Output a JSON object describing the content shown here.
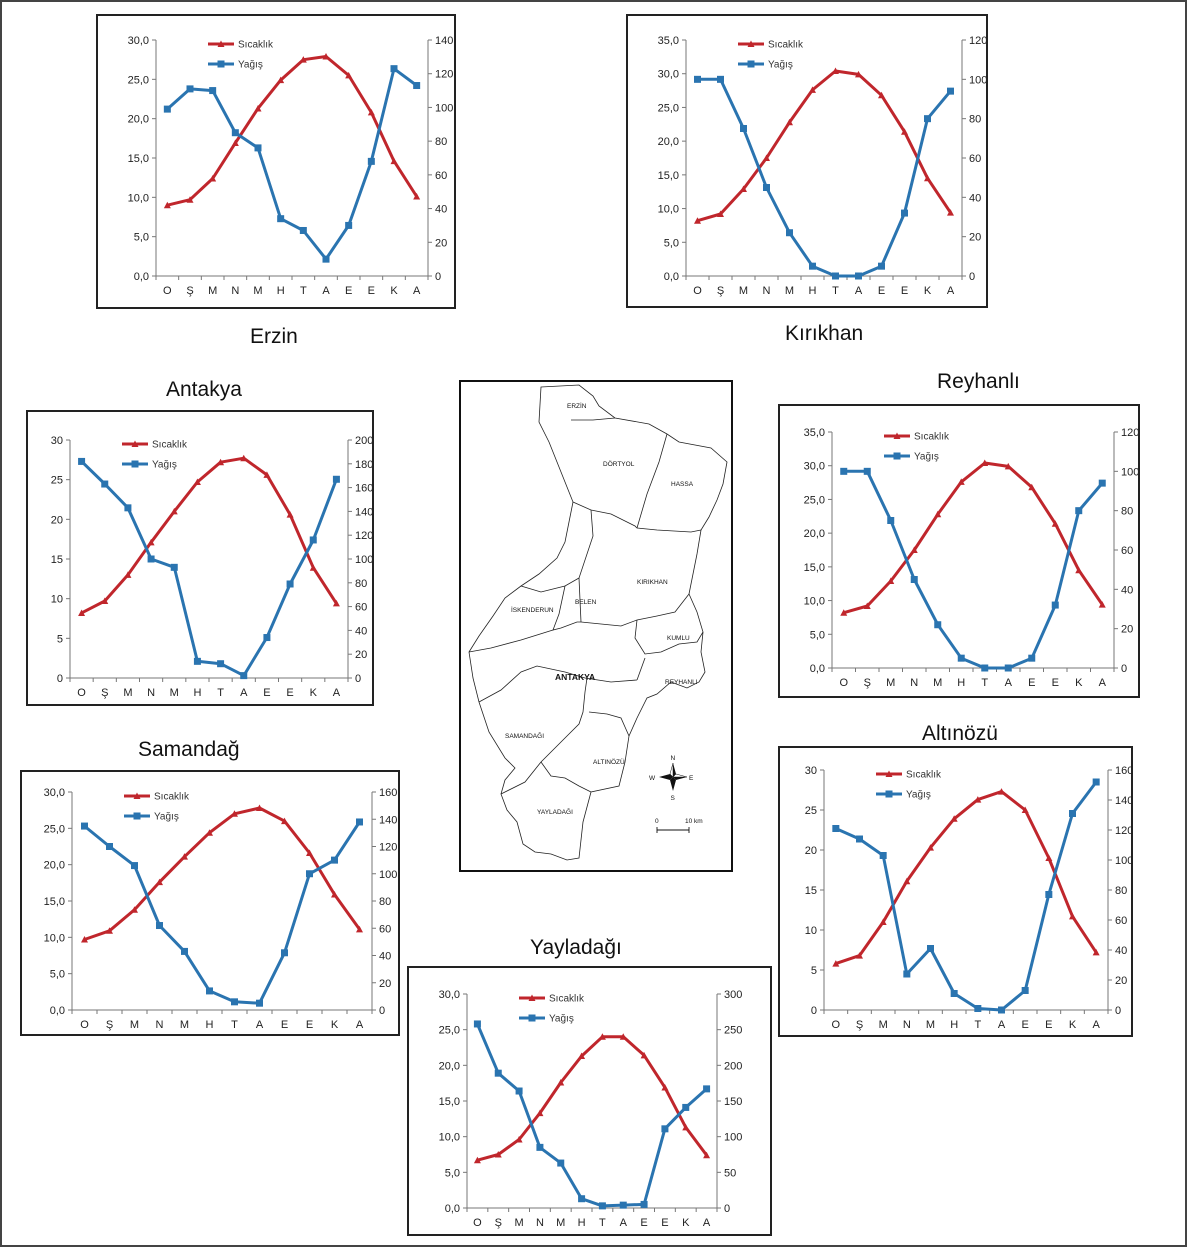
{
  "legend": {
    "temperature": "Sıcaklık",
    "precipitation": "Yağış"
  },
  "colors": {
    "temperature": "#c0262c",
    "precipitation": "#2a74b0"
  },
  "chart_data": [
    {
      "id": "erzin",
      "title": "Erzin",
      "type": "line",
      "categories": [
        "O",
        "Ş",
        "M",
        "N",
        "M",
        "H",
        "T",
        "A",
        "E",
        "E",
        "K",
        "A"
      ],
      "y_left": {
        "ticks": [
          "0,0",
          "5,0",
          "10,0",
          "15,0",
          "20,0",
          "25,0",
          "30,0"
        ],
        "range": [
          0,
          30
        ]
      },
      "y_right": {
        "ticks": [
          "0",
          "20",
          "40",
          "60",
          "80",
          "100",
          "120",
          "140"
        ],
        "range": [
          0,
          140
        ]
      },
      "series": [
        {
          "name": "Sıcaklık",
          "axis": "left",
          "values": [
            9.0,
            9.7,
            12.4,
            16.9,
            21.3,
            24.9,
            27.5,
            27.9,
            25.5,
            20.8,
            14.6,
            10.1
          ]
        },
        {
          "name": "Yağış",
          "axis": "right",
          "values": [
            99,
            111,
            110,
            85,
            76,
            34,
            27,
            10,
            30,
            68,
            123,
            113
          ]
        }
      ]
    },
    {
      "id": "kirikhan",
      "title": "Kırıkhan",
      "type": "line",
      "categories": [
        "O",
        "Ş",
        "M",
        "N",
        "M",
        "H",
        "T",
        "A",
        "E",
        "E",
        "K",
        "A"
      ],
      "y_left": {
        "ticks": [
          "0,0",
          "5,0",
          "10,0",
          "15,0",
          "20,0",
          "25,0",
          "30,0",
          "35,0"
        ],
        "range": [
          0,
          35
        ]
      },
      "y_right": {
        "ticks": [
          "0",
          "20",
          "40",
          "60",
          "80",
          "100",
          "120"
        ],
        "range": [
          0,
          120
        ]
      },
      "series": [
        {
          "name": "Sıcaklık",
          "axis": "left",
          "values": [
            8.2,
            9.2,
            12.9,
            17.5,
            22.8,
            27.6,
            30.4,
            29.9,
            26.8,
            21.4,
            14.5,
            9.4
          ]
        },
        {
          "name": "Yağış",
          "axis": "right",
          "values": [
            100,
            100,
            75,
            45,
            22,
            5,
            0,
            0,
            5,
            32,
            80,
            94
          ]
        }
      ]
    },
    {
      "id": "antakya",
      "title": "Antakya",
      "type": "line",
      "categories": [
        "O",
        "Ş",
        "M",
        "N",
        "M",
        "H",
        "T",
        "A",
        "E",
        "E",
        "K",
        "A"
      ],
      "y_left": {
        "ticks": [
          "0",
          "5",
          "10",
          "15",
          "20",
          "25",
          "30"
        ],
        "range": [
          0,
          30
        ]
      },
      "y_right": {
        "ticks": [
          "0",
          "20",
          "40",
          "60",
          "80",
          "100",
          "120",
          "140",
          "160",
          "180",
          "200"
        ],
        "range": [
          0,
          200
        ]
      },
      "series": [
        {
          "name": "Sıcaklık",
          "axis": "left",
          "values": [
            8.2,
            9.7,
            13.0,
            17.1,
            21.0,
            24.7,
            27.2,
            27.7,
            25.6,
            20.6,
            13.9,
            9.4
          ]
        },
        {
          "name": "Yağış",
          "axis": "right",
          "values": [
            182,
            163,
            143,
            100,
            93,
            14,
            12,
            2,
            34,
            79,
            116,
            167
          ]
        }
      ]
    },
    {
      "id": "reyhanli",
      "title": "Reyhanlı",
      "type": "line",
      "categories": [
        "O",
        "Ş",
        "M",
        "N",
        "M",
        "H",
        "T",
        "A",
        "E",
        "E",
        "K",
        "A"
      ],
      "y_left": {
        "ticks": [
          "0,0",
          "5,0",
          "10,0",
          "15,0",
          "20,0",
          "25,0",
          "30,0",
          "35,0"
        ],
        "range": [
          0,
          35
        ]
      },
      "y_right": {
        "ticks": [
          "0",
          "20",
          "40",
          "60",
          "80",
          "100",
          "120"
        ],
        "range": [
          0,
          120
        ]
      },
      "series": [
        {
          "name": "Sıcaklık",
          "axis": "left",
          "values": [
            8.2,
            9.2,
            12.9,
            17.5,
            22.8,
            27.6,
            30.4,
            29.9,
            26.8,
            21.4,
            14.5,
            9.4
          ]
        },
        {
          "name": "Yağış",
          "axis": "right",
          "values": [
            100,
            100,
            75,
            45,
            22,
            5,
            0,
            0,
            5,
            32,
            80,
            94
          ]
        }
      ]
    },
    {
      "id": "samandag",
      "title": "Samandağ",
      "type": "line",
      "categories": [
        "O",
        "Ş",
        "M",
        "N",
        "M",
        "H",
        "T",
        "A",
        "E",
        "E",
        "K",
        "A"
      ],
      "y_left": {
        "ticks": [
          "0,0",
          "5,0",
          "10,0",
          "15,0",
          "20,0",
          "25,0",
          "30,0"
        ],
        "range": [
          0,
          30
        ]
      },
      "y_right": {
        "ticks": [
          "0",
          "20",
          "40",
          "60",
          "80",
          "100",
          "120",
          "140",
          "160"
        ],
        "range": [
          0,
          160
        ]
      },
      "series": [
        {
          "name": "Sıcaklık",
          "axis": "left",
          "values": [
            9.7,
            10.9,
            13.8,
            17.6,
            21.1,
            24.4,
            27.0,
            27.8,
            26.0,
            21.6,
            15.9,
            11.1
          ]
        },
        {
          "name": "Yağış",
          "axis": "right",
          "values": [
            135,
            120,
            106,
            62,
            43,
            14,
            6,
            5,
            42,
            100,
            110,
            138
          ]
        }
      ]
    },
    {
      "id": "altinozu",
      "title": "Altınözü",
      "type": "line",
      "categories": [
        "O",
        "Ş",
        "M",
        "N",
        "M",
        "H",
        "T",
        "A",
        "E",
        "E",
        "K",
        "A"
      ],
      "y_left": {
        "ticks": [
          "0",
          "5",
          "10",
          "15",
          "20",
          "25",
          "30"
        ],
        "range": [
          0,
          30
        ]
      },
      "y_right": {
        "ticks": [
          "0",
          "20",
          "40",
          "60",
          "80",
          "100",
          "120",
          "140",
          "160"
        ],
        "range": [
          0,
          160
        ]
      },
      "series": [
        {
          "name": "Sıcaklık",
          "axis": "left",
          "values": [
            5.8,
            6.8,
            11.0,
            16.1,
            20.3,
            23.9,
            26.3,
            27.3,
            25.0,
            19.0,
            11.7,
            7.2
          ]
        },
        {
          "name": "Yağış",
          "axis": "right",
          "values": [
            121,
            114,
            103,
            24,
            41,
            11,
            1,
            0,
            13,
            77,
            131,
            152
          ]
        }
      ]
    },
    {
      "id": "yayladagi",
      "title": "Yayladağı",
      "type": "line",
      "categories": [
        "O",
        "Ş",
        "M",
        "N",
        "M",
        "H",
        "T",
        "A",
        "E",
        "E",
        "K",
        "A"
      ],
      "y_left": {
        "ticks": [
          "0,0",
          "5,0",
          "10,0",
          "15,0",
          "20,0",
          "25,0",
          "30,0"
        ],
        "range": [
          0,
          30
        ]
      },
      "y_right": {
        "ticks": [
          "0",
          "50",
          "100",
          "150",
          "200",
          "250",
          "300"
        ],
        "range": [
          0,
          300
        ]
      },
      "series": [
        {
          "name": "Sıcaklık",
          "axis": "left",
          "values": [
            6.7,
            7.5,
            9.6,
            13.3,
            17.6,
            21.3,
            24.0,
            24.0,
            21.4,
            16.9,
            11.3,
            7.4
          ]
        },
        {
          "name": "Yağış",
          "axis": "right",
          "values": [
            258,
            189,
            164,
            85,
            63,
            13,
            3,
            4,
            5,
            111,
            141,
            167
          ]
        }
      ]
    }
  ],
  "map": {
    "districts": [
      "ERZİN",
      "DÖRTYOL",
      "HASSA",
      "KIRIKHAN",
      "İSKENDERUN",
      "BELEN",
      "KUMLU",
      "REYHANLI",
      "ANTAKYA",
      "SAMANDAĞI",
      "ALTINÖZÜ",
      "YAYLADAĞI"
    ],
    "compass": {
      "n": "N",
      "s": "S",
      "e": "E",
      "w": "W"
    },
    "scale": {
      "start": "0",
      "end": "10 km"
    }
  }
}
